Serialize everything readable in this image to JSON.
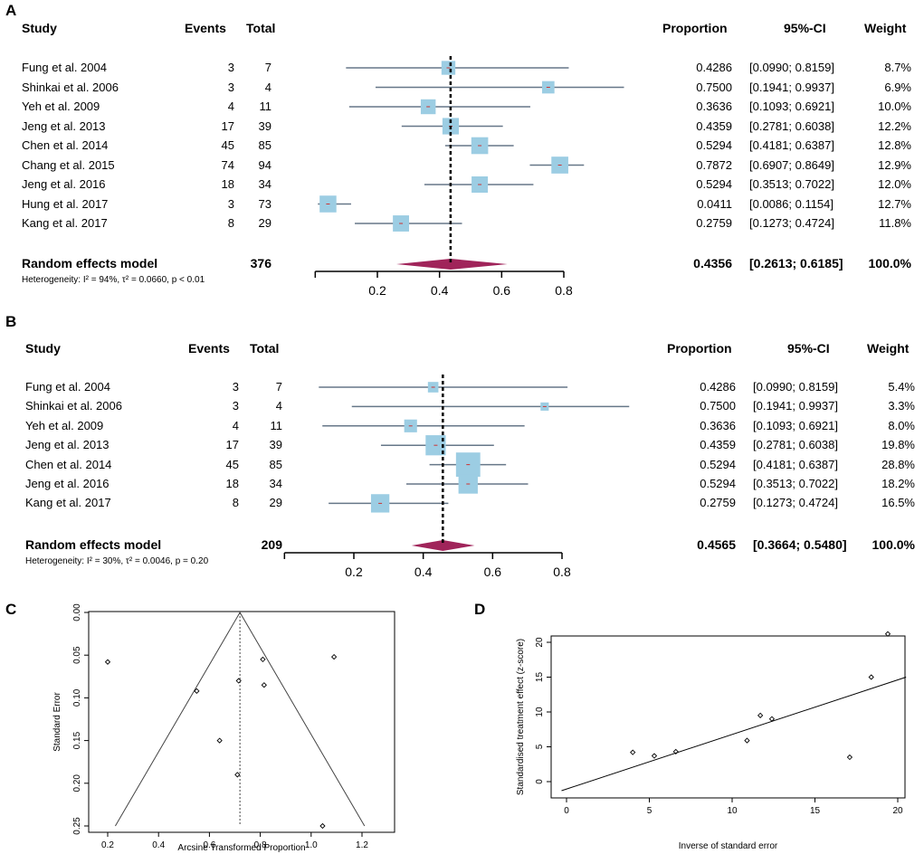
{
  "panels": [
    {
      "letter": "A",
      "headers": {
        "study": "Study",
        "events": "Events",
        "total": "Total",
        "proportion": "Proportion",
        "ci": "95%-CI",
        "weight": "Weight"
      },
      "rows": [
        {
          "study": "Fung et al. 2004",
          "events": "3",
          "total": "7",
          "prop": "0.4286",
          "ci": "[0.0990; 0.8159]",
          "weight": "8.7%",
          "p": 0.4286,
          "lo": 0.099,
          "hi": 0.8159,
          "w": 8.7
        },
        {
          "study": "Shinkai et al.  2006",
          "events": "3",
          "total": "4",
          "prop": "0.7500",
          "ci": "[0.1941; 0.9937]",
          "weight": "6.9%",
          "p": 0.75,
          "lo": 0.1941,
          "hi": 0.9937,
          "w": 6.9
        },
        {
          "study": "Yeh et al. 2009",
          "events": "4",
          "total": "11",
          "prop": "0.3636",
          "ci": "[0.1093; 0.6921]",
          "weight": "10.0%",
          "p": 0.3636,
          "lo": 0.1093,
          "hi": 0.6921,
          "w": 10.0
        },
        {
          "study": "Jeng et al. 2013",
          "events": "17",
          "total": "39",
          "prop": "0.4359",
          "ci": "[0.2781; 0.6038]",
          "weight": "12.2%",
          "p": 0.4359,
          "lo": 0.2781,
          "hi": 0.6038,
          "w": 12.2
        },
        {
          "study": "Chen et al. 2014",
          "events": "45",
          "total": "85",
          "prop": "0.5294",
          "ci": "[0.4181; 0.6387]",
          "weight": "12.8%",
          "p": 0.5294,
          "lo": 0.4181,
          "hi": 0.6387,
          "w": 12.8
        },
        {
          "study": "Chang et al.  2015",
          "events": "74",
          "total": "94",
          "prop": "0.7872",
          "ci": "[0.6907; 0.8649]",
          "weight": "12.9%",
          "p": 0.7872,
          "lo": 0.6907,
          "hi": 0.8649,
          "w": 12.9
        },
        {
          "study": "Jeng et al. 2016",
          "events": "18",
          "total": "34",
          "prop": "0.5294",
          "ci": "[0.3513; 0.7022]",
          "weight": "12.0%",
          "p": 0.5294,
          "lo": 0.3513,
          "hi": 0.7022,
          "w": 12.0
        },
        {
          "study": "Hung et al. 2017",
          "events": "3",
          "total": "73",
          "prop": "0.0411",
          "ci": "[0.0086; 0.1154]",
          "weight": "12.7%",
          "p": 0.0411,
          "lo": 0.0086,
          "hi": 0.1154,
          "w": 12.7
        },
        {
          "study": "Kang et al. 2017",
          "events": "8",
          "total": "29",
          "prop": "0.2759",
          "ci": "[0.1273; 0.4724]",
          "weight": "11.8%",
          "p": 0.2759,
          "lo": 0.1273,
          "hi": 0.4724,
          "w": 11.8
        }
      ],
      "summary": {
        "label": "Random effects model",
        "total": "376",
        "prop": "0.4356",
        "ci": "[0.2613; 0.6185]",
        "weight": "100.0%",
        "p": 0.4356,
        "lo": 0.2613,
        "hi": 0.6185
      },
      "heterogeneity": "Heterogeneity: I² = 94%, τ² = 0.0660, p < 0.01",
      "ticks": [
        "0.2",
        "0.4",
        "0.6",
        "0.8"
      ]
    },
    {
      "letter": "B",
      "headers": {
        "study": "Study",
        "events": "Events",
        "total": "Total",
        "proportion": "Proportion",
        "ci": "95%-CI",
        "weight": "Weight"
      },
      "rows": [
        {
          "study": "Fung et al. 2004",
          "events": "3",
          "total": "7",
          "prop": "0.4286",
          "ci": "[0.0990; 0.8159]",
          "weight": "5.4%",
          "p": 0.4286,
          "lo": 0.099,
          "hi": 0.8159,
          "w": 5.4
        },
        {
          "study": "Shinkai et al.  2006",
          "events": "3",
          "total": "4",
          "prop": "0.7500",
          "ci": "[0.1941; 0.9937]",
          "weight": "3.3%",
          "p": 0.75,
          "lo": 0.1941,
          "hi": 0.9937,
          "w": 3.3
        },
        {
          "study": "Yeh et al. 2009",
          "events": "4",
          "total": "11",
          "prop": "0.3636",
          "ci": "[0.1093; 0.6921]",
          "weight": "8.0%",
          "p": 0.3636,
          "lo": 0.1093,
          "hi": 0.6921,
          "w": 8.0
        },
        {
          "study": "Jeng et al. 2013",
          "events": "17",
          "total": "39",
          "prop": "0.4359",
          "ci": "[0.2781; 0.6038]",
          "weight": "19.8%",
          "p": 0.4359,
          "lo": 0.2781,
          "hi": 0.6038,
          "w": 19.8
        },
        {
          "study": "Chen et al. 2014",
          "events": "45",
          "total": "85",
          "prop": "0.5294",
          "ci": "[0.4181; 0.6387]",
          "weight": "28.8%",
          "p": 0.5294,
          "lo": 0.4181,
          "hi": 0.6387,
          "w": 28.8
        },
        {
          "study": "Jeng et al. 2016",
          "events": "18",
          "total": "34",
          "prop": "0.5294",
          "ci": "[0.3513; 0.7022]",
          "weight": "18.2%",
          "p": 0.5294,
          "lo": 0.3513,
          "hi": 0.7022,
          "w": 18.2
        },
        {
          "study": "Kang et al. 2017",
          "events": "8",
          "total": "29",
          "prop": "0.2759",
          "ci": "[0.1273; 0.4724]",
          "weight": "16.5%",
          "p": 0.2759,
          "lo": 0.1273,
          "hi": 0.4724,
          "w": 16.5
        }
      ],
      "summary": {
        "label": "Random effects model",
        "total": "209",
        "prop": "0.4565",
        "ci": "[0.3664; 0.5480]",
        "weight": "100.0%",
        "p": 0.4565,
        "lo": 0.3664,
        "hi": 0.548
      },
      "heterogeneity": "Heterogeneity: I² = 30%, τ² = 0.0046, p = 0.20",
      "ticks": [
        "0.2",
        "0.4",
        "0.6",
        "0.8"
      ]
    }
  ],
  "funnel": {
    "letter": "C",
    "xlabel": "Arcsine Transformed Proportion",
    "ylabel": "Standard Error",
    "xticks": [
      "0.2",
      "0.4",
      "0.6",
      "0.8",
      "1.0",
      "1.2"
    ],
    "yticks": [
      "0.00",
      "0.05",
      "0.10",
      "0.15",
      "0.20",
      "0.25"
    ],
    "center": 0.72,
    "points": [
      [
        0.2,
        0.058
      ],
      [
        0.55,
        0.092
      ],
      [
        0.64,
        0.15
      ],
      [
        0.715,
        0.08
      ],
      [
        0.71,
        0.19
      ],
      [
        0.81,
        0.055
      ],
      [
        0.815,
        0.085
      ],
      [
        1.09,
        0.052
      ],
      [
        1.045,
        0.25
      ]
    ]
  },
  "galbraith": {
    "letter": "D",
    "xlabel": "Inverse of standard error",
    "ylabel": "Standardised treatment effect (z-score)",
    "xticks": [
      "0",
      "5",
      "10",
      "15",
      "20"
    ],
    "yticks": [
      "0",
      "5",
      "10",
      "15",
      "20"
    ],
    "line": {
      "x0": -0.3,
      "y0": -1.3,
      "x1": 20.5,
      "y1": 15.0
    },
    "points": [
      [
        4.0,
        4.2
      ],
      [
        5.3,
        3.7
      ],
      [
        6.6,
        4.3
      ],
      [
        10.9,
        5.9
      ],
      [
        11.7,
        9.5
      ],
      [
        12.4,
        9.0
      ],
      [
        17.1,
        3.5
      ],
      [
        18.4,
        15.0
      ],
      [
        19.4,
        21.2
      ]
    ]
  },
  "colors": {
    "square": "#9ccde3",
    "ci_line": "#667788",
    "diamond": "#a0245a",
    "point": "#cc3333"
  }
}
